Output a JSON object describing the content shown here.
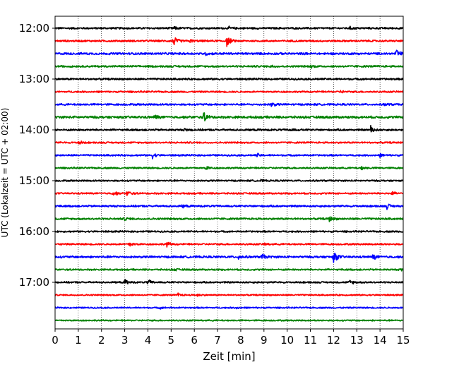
{
  "chart_data": {
    "type": "line",
    "title": "",
    "xlabel": "Zeit  [min]",
    "ylabel": "UTC (Lokalzeit = UTC + 02:00)",
    "xlim": [
      0,
      15
    ],
    "x_ticks": [
      "0",
      "1",
      "2",
      "3",
      "4",
      "5",
      "6",
      "7",
      "8",
      "9",
      "10",
      "11",
      "12",
      "13",
      "14",
      "15"
    ],
    "y_ticks": [
      "12:00",
      "13:00",
      "14:00",
      "15:00",
      "16:00",
      "17:00"
    ],
    "grid": "vertical dotted lines at each minute",
    "trace_interval_minutes": 15,
    "trace_colors": [
      "#000000",
      "#ff0000",
      "#0000ff",
      "#008000"
    ],
    "series": [
      {
        "start": "12:00",
        "color": "#000000",
        "amp": 0.16,
        "events": [
          {
            "x": 5.1,
            "a": 0.25
          },
          {
            "x": 7.5,
            "a": 0.2
          },
          {
            "x": 12.7,
            "a": 0.2
          }
        ]
      },
      {
        "start": "12:15",
        "color": "#ff0000",
        "amp": 0.16,
        "events": [
          {
            "x": 5.1,
            "a": 0.95
          },
          {
            "x": 7.4,
            "a": 0.9
          },
          {
            "x": 5.8,
            "a": 0.2
          }
        ]
      },
      {
        "start": "12:30",
        "color": "#0000ff",
        "amp": 0.18,
        "events": [
          {
            "x": 14.7,
            "a": 0.8
          },
          {
            "x": 6.5,
            "a": 0.2
          }
        ]
      },
      {
        "start": "12:45",
        "color": "#008000",
        "amp": 0.16,
        "events": [
          {
            "x": 11.0,
            "a": 0.25
          },
          {
            "x": 9.3,
            "a": 0.2
          }
        ]
      },
      {
        "start": "13:00",
        "color": "#000000",
        "amp": 0.16,
        "events": []
      },
      {
        "start": "13:15",
        "color": "#ff0000",
        "amp": 0.14,
        "events": [
          {
            "x": 12.3,
            "a": 0.2
          }
        ]
      },
      {
        "start": "13:30",
        "color": "#0000ff",
        "amp": 0.16,
        "events": [
          {
            "x": 9.3,
            "a": 0.45
          },
          {
            "x": 14.2,
            "a": 0.2
          }
        ]
      },
      {
        "start": "13:45",
        "color": "#008000",
        "amp": 0.2,
        "events": [
          {
            "x": 6.4,
            "a": 0.85
          },
          {
            "x": 4.3,
            "a": 0.4
          }
        ]
      },
      {
        "start": "14:00",
        "color": "#000000",
        "amp": 0.16,
        "events": [
          {
            "x": 13.6,
            "a": 0.65
          },
          {
            "x": 10.1,
            "a": 0.3
          },
          {
            "x": 5.6,
            "a": 0.3
          }
        ]
      },
      {
        "start": "14:15",
        "color": "#ff0000",
        "amp": 0.14,
        "events": [
          {
            "x": 1.0,
            "a": 0.35
          }
        ]
      },
      {
        "start": "14:30",
        "color": "#0000ff",
        "amp": 0.14,
        "events": [
          {
            "x": 4.2,
            "a": 0.45
          },
          {
            "x": 8.7,
            "a": 0.3
          },
          {
            "x": 14.0,
            "a": 0.25
          }
        ]
      },
      {
        "start": "14:45",
        "color": "#008000",
        "amp": 0.14,
        "events": [
          {
            "x": 13.2,
            "a": 0.3
          },
          {
            "x": 6.5,
            "a": 0.3
          }
        ]
      },
      {
        "start": "15:00",
        "color": "#000000",
        "amp": 0.14,
        "events": [
          {
            "x": 8.8,
            "a": 0.2
          }
        ]
      },
      {
        "start": "15:15",
        "color": "#ff0000",
        "amp": 0.14,
        "events": [
          {
            "x": 3.1,
            "a": 0.5
          },
          {
            "x": 2.5,
            "a": 0.45
          },
          {
            "x": 14.5,
            "a": 0.3
          }
        ]
      },
      {
        "start": "15:30",
        "color": "#0000ff",
        "amp": 0.16,
        "events": [
          {
            "x": 14.3,
            "a": 0.4
          },
          {
            "x": 5.5,
            "a": 0.2
          }
        ]
      },
      {
        "start": "15:45",
        "color": "#008000",
        "amp": 0.16,
        "events": [
          {
            "x": 11.8,
            "a": 0.55
          },
          {
            "x": 3.0,
            "a": 0.25
          }
        ]
      },
      {
        "start": "16:00",
        "color": "#000000",
        "amp": 0.14,
        "events": []
      },
      {
        "start": "16:15",
        "color": "#ff0000",
        "amp": 0.14,
        "events": [
          {
            "x": 3.2,
            "a": 0.45
          },
          {
            "x": 4.8,
            "a": 0.45
          },
          {
            "x": 9.0,
            "a": 0.2
          }
        ]
      },
      {
        "start": "16:30",
        "color": "#0000ff",
        "amp": 0.18,
        "events": [
          {
            "x": 12.0,
            "a": 1.1
          },
          {
            "x": 8.9,
            "a": 0.55
          },
          {
            "x": 13.7,
            "a": 0.5
          },
          {
            "x": 7.9,
            "a": 0.35
          }
        ]
      },
      {
        "start": "16:45",
        "color": "#008000",
        "amp": 0.14,
        "events": [
          {
            "x": 14.9,
            "a": 0.3
          },
          {
            "x": 5.1,
            "a": 0.25
          }
        ]
      },
      {
        "start": "17:00",
        "color": "#000000",
        "amp": 0.14,
        "events": [
          {
            "x": 3.0,
            "a": 0.45
          },
          {
            "x": 4.0,
            "a": 0.45
          },
          {
            "x": 12.7,
            "a": 0.45
          }
        ]
      },
      {
        "start": "17:15",
        "color": "#ff0000",
        "amp": 0.12,
        "events": [
          {
            "x": 5.3,
            "a": 0.3
          },
          {
            "x": 6.1,
            "a": 0.25
          }
        ]
      },
      {
        "start": "17:30",
        "color": "#0000ff",
        "amp": 0.12,
        "events": [
          {
            "x": 7.8,
            "a": 0.2
          },
          {
            "x": 4.5,
            "a": 0.15
          }
        ]
      },
      {
        "start": "17:45",
        "color": "#008000",
        "amp": 0.12,
        "events": []
      }
    ]
  }
}
